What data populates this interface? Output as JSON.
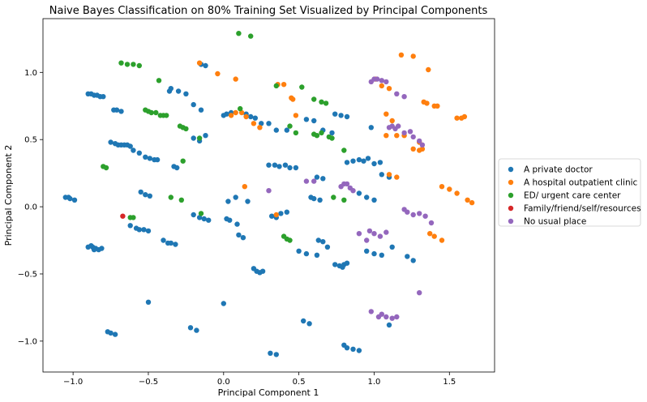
{
  "chart_data": {
    "type": "scatter",
    "title": "Naive Bayes Classification on 80% Training Set Visualized by Principal Components",
    "xlabel": "Principal Component 1",
    "ylabel": "Principal Component 2",
    "xlim": [
      -1.2,
      1.8
    ],
    "ylim": [
      -1.23,
      1.4
    ],
    "xticks": [
      -1.0,
      -0.5,
      0.0,
      0.5,
      1.0,
      1.5
    ],
    "xtick_labels": [
      "−1.0",
      "−0.5",
      "0.0",
      "0.5",
      "1.0",
      "1.5"
    ],
    "yticks": [
      -1.0,
      -0.5,
      0.0,
      0.5,
      1.0
    ],
    "ytick_labels": [
      "−1.0",
      "−0.5",
      "0.0",
      "0.5",
      "1.0"
    ],
    "grid": false,
    "legend_position": "outside-right",
    "series": [
      {
        "name": "A private doctor",
        "color": "#1f77b4",
        "points": [
          [
            -1.05,
            0.07
          ],
          [
            -1.03,
            0.07
          ],
          [
            -1.02,
            0.06
          ],
          [
            -0.99,
            0.05
          ],
          [
            -0.9,
            0.84
          ],
          [
            -0.88,
            0.84
          ],
          [
            -0.86,
            0.83
          ],
          [
            -0.84,
            0.83
          ],
          [
            -0.82,
            0.82
          ],
          [
            -0.8,
            0.82
          ],
          [
            -0.73,
            0.72
          ],
          [
            -0.71,
            0.72
          ],
          [
            -0.68,
            0.71
          ],
          [
            -0.75,
            0.48
          ],
          [
            -0.72,
            0.47
          ],
          [
            -0.7,
            0.46
          ],
          [
            -0.68,
            0.46
          ],
          [
            -0.66,
            0.46
          ],
          [
            -0.64,
            0.46
          ],
          [
            -0.62,
            0.45
          ],
          [
            -0.6,
            0.42
          ],
          [
            -0.56,
            0.4
          ],
          [
            -0.52,
            0.37
          ],
          [
            -0.49,
            0.36
          ],
          [
            -0.46,
            0.35
          ],
          [
            -0.44,
            0.35
          ],
          [
            -0.33,
            0.3
          ],
          [
            -0.31,
            0.29
          ],
          [
            -0.9,
            -0.3
          ],
          [
            -0.88,
            -0.29
          ],
          [
            -0.87,
            -0.3
          ],
          [
            -0.85,
            -0.31
          ],
          [
            -0.83,
            -0.32
          ],
          [
            -0.81,
            -0.31
          ],
          [
            -0.86,
            -0.32
          ],
          [
            -0.62,
            -0.14
          ],
          [
            -0.58,
            -0.16
          ],
          [
            -0.56,
            -0.17
          ],
          [
            -0.53,
            -0.17
          ],
          [
            -0.5,
            -0.18
          ],
          [
            -0.55,
            0.11
          ],
          [
            -0.52,
            0.09
          ],
          [
            -0.49,
            0.08
          ],
          [
            -0.4,
            -0.25
          ],
          [
            -0.37,
            -0.27
          ],
          [
            -0.35,
            -0.27
          ],
          [
            -0.32,
            -0.28
          ],
          [
            -0.36,
            0.86
          ],
          [
            -0.35,
            0.88
          ],
          [
            -0.3,
            0.86
          ],
          [
            -0.25,
            0.84
          ],
          [
            -0.15,
            1.06
          ],
          [
            -0.12,
            1.05
          ],
          [
            -0.2,
            0.76
          ],
          [
            -0.15,
            0.72
          ],
          [
            -0.2,
            0.51
          ],
          [
            -0.16,
            0.49
          ],
          [
            -0.12,
            0.53
          ],
          [
            -0.2,
            -0.06
          ],
          [
            -0.16,
            -0.08
          ],
          [
            -0.13,
            -0.09
          ],
          [
            -0.1,
            -0.1
          ],
          [
            0.02,
            -0.09
          ],
          [
            0.04,
            -0.1
          ],
          [
            0.09,
            -0.13
          ],
          [
            0.1,
            -0.21
          ],
          [
            0.13,
            -0.23
          ],
          [
            0.03,
            0.04
          ],
          [
            0.08,
            0.07
          ],
          [
            0.16,
            0.04
          ],
          [
            0.0,
            0.68
          ],
          [
            0.02,
            0.69
          ],
          [
            0.05,
            0.7
          ],
          [
            0.15,
            0.69
          ],
          [
            0.18,
            0.67
          ],
          [
            0.21,
            0.66
          ],
          [
            0.25,
            0.62
          ],
          [
            0.3,
            0.62
          ],
          [
            0.35,
            0.57
          ],
          [
            0.42,
            0.57
          ],
          [
            0.2,
            -0.46
          ],
          [
            0.22,
            -0.48
          ],
          [
            0.24,
            -0.49
          ],
          [
            0.26,
            -0.48
          ],
          [
            0.3,
            0.31
          ],
          [
            0.34,
            0.31
          ],
          [
            0.37,
            0.3
          ],
          [
            0.41,
            0.31
          ],
          [
            0.44,
            0.29
          ],
          [
            0.48,
            0.29
          ],
          [
            0.32,
            -0.07
          ],
          [
            0.35,
            -0.08
          ],
          [
            0.38,
            -0.05
          ],
          [
            0.42,
            -0.04
          ],
          [
            0.5,
            -0.33
          ],
          [
            0.55,
            -0.35
          ],
          [
            0.62,
            -0.36
          ],
          [
            0.55,
            0.65
          ],
          [
            0.6,
            0.64
          ],
          [
            0.66,
            0.57
          ],
          [
            0.72,
            0.55
          ],
          [
            0.63,
            -0.25
          ],
          [
            0.66,
            -0.26
          ],
          [
            0.69,
            -0.3
          ],
          [
            0.58,
            0.07
          ],
          [
            0.6,
            0.06
          ],
          [
            0.64,
            0.05
          ],
          [
            -0.5,
            -0.71
          ],
          [
            -0.22,
            -0.9
          ],
          [
            -0.18,
            -0.92
          ],
          [
            0.0,
            -0.72
          ],
          [
            0.31,
            -1.09
          ],
          [
            0.35,
            -1.1
          ],
          [
            0.53,
            -0.85
          ],
          [
            0.57,
            -0.87
          ],
          [
            -0.77,
            -0.93
          ],
          [
            -0.75,
            -0.94
          ],
          [
            -0.72,
            -0.95
          ],
          [
            0.74,
            -0.43
          ],
          [
            0.77,
            -0.44
          ],
          [
            0.8,
            -0.43
          ],
          [
            0.82,
            -0.42
          ],
          [
            0.79,
            -0.45
          ],
          [
            0.8,
            -1.03
          ],
          [
            0.82,
            -1.05
          ],
          [
            0.86,
            -1.06
          ],
          [
            0.9,
            -1.07
          ],
          [
            0.82,
            0.33
          ],
          [
            0.86,
            0.34
          ],
          [
            0.9,
            0.35
          ],
          [
            0.93,
            0.34
          ],
          [
            0.96,
            0.36
          ],
          [
            1.0,
            0.32
          ],
          [
            1.04,
            0.33
          ],
          [
            0.74,
            0.69
          ],
          [
            0.78,
            0.68
          ],
          [
            0.82,
            0.67
          ],
          [
            0.98,
            0.59
          ],
          [
            1.05,
            0.24
          ],
          [
            1.1,
            0.22
          ],
          [
            0.95,
            -0.33
          ],
          [
            1.0,
            -0.35
          ],
          [
            1.05,
            -0.36
          ],
          [
            1.12,
            -0.3
          ],
          [
            1.22,
            -0.37
          ],
          [
            1.26,
            -0.4
          ],
          [
            0.9,
            0.1
          ],
          [
            0.95,
            0.07
          ],
          [
            1.0,
            0.05
          ],
          [
            0.62,
            0.22
          ],
          [
            0.66,
            0.21
          ],
          [
            1.1,
            -0.88
          ]
        ]
      },
      {
        "name": "A hospital outpatient clinic",
        "color": "#ff7f0e",
        "points": [
          [
            -0.16,
            1.07
          ],
          [
            -0.04,
            0.99
          ],
          [
            0.08,
            0.95
          ],
          [
            0.05,
            0.68
          ],
          [
            0.08,
            0.7
          ],
          [
            0.12,
            0.7
          ],
          [
            0.15,
            0.67
          ],
          [
            0.2,
            0.62
          ],
          [
            0.24,
            0.59
          ],
          [
            0.14,
            0.15
          ],
          [
            0.36,
            0.91
          ],
          [
            0.4,
            0.91
          ],
          [
            0.45,
            0.81
          ],
          [
            0.46,
            0.8
          ],
          [
            0.48,
            0.68
          ],
          [
            0.35,
            -0.06
          ],
          [
            1.01,
            0.95
          ],
          [
            1.05,
            0.9
          ],
          [
            1.1,
            0.88
          ],
          [
            1.18,
            1.13
          ],
          [
            1.26,
            1.12
          ],
          [
            1.36,
            1.02
          ],
          [
            1.08,
            0.69
          ],
          [
            1.12,
            0.64
          ],
          [
            1.08,
            0.53
          ],
          [
            1.15,
            0.53
          ],
          [
            1.2,
            0.53
          ],
          [
            1.26,
            0.43
          ],
          [
            1.3,
            0.42
          ],
          [
            1.32,
            0.43
          ],
          [
            1.33,
            0.78
          ],
          [
            1.35,
            0.77
          ],
          [
            1.4,
            0.75
          ],
          [
            1.42,
            0.75
          ],
          [
            1.1,
            0.24
          ],
          [
            1.15,
            0.22
          ],
          [
            1.45,
            0.15
          ],
          [
            1.5,
            0.13
          ],
          [
            1.55,
            0.1
          ],
          [
            1.62,
            0.05
          ],
          [
            1.65,
            0.03
          ],
          [
            1.55,
            0.66
          ],
          [
            1.58,
            0.66
          ],
          [
            1.6,
            0.67
          ],
          [
            1.37,
            -0.2
          ],
          [
            1.4,
            -0.22
          ],
          [
            1.45,
            -0.25
          ],
          [
            1.3,
            0.48
          ]
        ]
      },
      {
        "name": "ED/ urgent care center",
        "color": "#2ca02c",
        "points": [
          [
            -0.68,
            1.07
          ],
          [
            -0.64,
            1.06
          ],
          [
            -0.6,
            1.06
          ],
          [
            -0.56,
            1.05
          ],
          [
            -0.43,
            0.94
          ],
          [
            -0.52,
            0.72
          ],
          [
            -0.5,
            0.71
          ],
          [
            -0.48,
            0.7
          ],
          [
            -0.45,
            0.7
          ],
          [
            -0.42,
            0.68
          ],
          [
            -0.4,
            0.68
          ],
          [
            -0.38,
            0.68
          ],
          [
            -0.29,
            0.6
          ],
          [
            -0.27,
            0.59
          ],
          [
            -0.25,
            0.58
          ],
          [
            -0.8,
            0.3
          ],
          [
            -0.78,
            0.29
          ],
          [
            -0.27,
            0.34
          ],
          [
            -0.35,
            0.07
          ],
          [
            -0.28,
            0.05
          ],
          [
            -0.62,
            -0.08
          ],
          [
            -0.6,
            -0.08
          ],
          [
            -0.16,
            0.51
          ],
          [
            0.11,
            0.73
          ],
          [
            0.1,
            1.29
          ],
          [
            0.18,
            1.27
          ],
          [
            0.35,
            0.9
          ],
          [
            0.52,
            0.89
          ],
          [
            0.44,
            0.6
          ],
          [
            0.48,
            0.55
          ],
          [
            0.6,
            0.54
          ],
          [
            0.62,
            0.53
          ],
          [
            0.65,
            0.55
          ],
          [
            0.7,
            0.52
          ],
          [
            0.72,
            0.51
          ],
          [
            0.6,
            0.8
          ],
          [
            0.65,
            0.78
          ],
          [
            0.68,
            0.77
          ],
          [
            0.4,
            -0.22
          ],
          [
            0.42,
            -0.24
          ],
          [
            0.44,
            -0.25
          ],
          [
            0.73,
            0.07
          ],
          [
            0.8,
            0.05
          ],
          [
            0.8,
            0.42
          ],
          [
            -0.15,
            -0.05
          ]
        ]
      },
      {
        "name": "Family/friend/self/resources",
        "color": "#d62728",
        "points": [
          [
            -0.67,
            -0.07
          ]
        ]
      },
      {
        "name": "No usual place",
        "color": "#9467bd",
        "points": [
          [
            0.3,
            0.12
          ],
          [
            0.55,
            0.19
          ],
          [
            0.6,
            0.19
          ],
          [
            0.78,
            0.15
          ],
          [
            0.8,
            0.17
          ],
          [
            0.82,
            0.17
          ],
          [
            0.84,
            0.14
          ],
          [
            0.86,
            0.12
          ],
          [
            0.98,
            0.93
          ],
          [
            1.0,
            0.95
          ],
          [
            1.02,
            0.95
          ],
          [
            1.05,
            0.94
          ],
          [
            1.08,
            0.93
          ],
          [
            1.15,
            0.84
          ],
          [
            1.2,
            0.82
          ],
          [
            1.1,
            0.59
          ],
          [
            1.12,
            0.6
          ],
          [
            1.14,
            0.58
          ],
          [
            1.16,
            0.6
          ],
          [
            1.2,
            0.55
          ],
          [
            1.24,
            0.56
          ],
          [
            1.26,
            0.52
          ],
          [
            1.3,
            0.49
          ],
          [
            1.32,
            0.46
          ],
          [
            0.97,
            -0.18
          ],
          [
            1.0,
            -0.2
          ],
          [
            1.04,
            -0.22
          ],
          [
            1.08,
            -0.19
          ],
          [
            0.9,
            -0.2
          ],
          [
            0.95,
            -0.25
          ],
          [
            1.2,
            -0.02
          ],
          [
            1.22,
            -0.04
          ],
          [
            1.26,
            -0.06
          ],
          [
            1.3,
            -0.05
          ],
          [
            1.34,
            -0.07
          ],
          [
            1.38,
            -0.12
          ],
          [
            0.98,
            -0.78
          ],
          [
            1.03,
            -0.82
          ],
          [
            1.08,
            -0.82
          ],
          [
            1.12,
            -0.83
          ],
          [
            1.15,
            -0.82
          ],
          [
            1.05,
            -0.8
          ],
          [
            1.3,
            -0.64
          ]
        ]
      }
    ]
  }
}
